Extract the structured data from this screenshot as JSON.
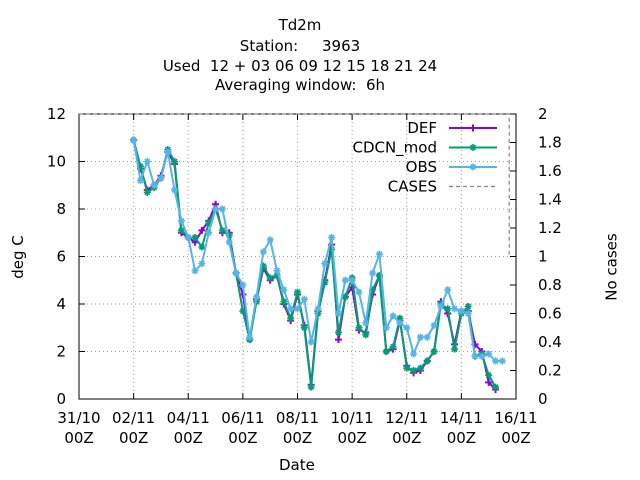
{
  "chart_data": {
    "type": "line",
    "title_lines": [
      "Td2m",
      "Station:     3963",
      "Used  12 + 03 06 09 12 15 18 21 24",
      "Averaging window:  6h"
    ],
    "xlabel": "Date",
    "ylabel": "deg C",
    "y2label": "No cases",
    "xlim": [
      "31/10 00Z",
      "16/11 00Z"
    ],
    "ylim": [
      0,
      12
    ],
    "y2lim": [
      0,
      2
    ],
    "x_unit_hours": 6,
    "x_ticks": [
      "31/10 00Z",
      "02/11 00Z",
      "04/11 00Z",
      "06/11 00Z",
      "08/11 00Z",
      "10/11 00Z",
      "12/11 00Z",
      "14/11 00Z",
      "16/11 00Z"
    ],
    "y_ticks": [
      0,
      2,
      4,
      6,
      8,
      10,
      12
    ],
    "y2_ticks": [
      0,
      0.2,
      0.4,
      0.6,
      0.8,
      1,
      1.2,
      1.4,
      1.6,
      1.8,
      2
    ],
    "grid": true,
    "legend_position": "top-right",
    "series": [
      {
        "name": "DEF",
        "color": "#9400d3",
        "marker": "plus",
        "x_start": "02/11 00Z",
        "values": [
          10.9,
          9.7,
          8.8,
          9.0,
          9.4,
          10.4,
          9.9,
          7.0,
          6.8,
          6.6,
          7.1,
          7.5,
          8.2,
          7.0,
          7.0,
          5.3,
          4.4,
          2.5,
          4.2,
          5.5,
          5.0,
          5.2,
          4.0,
          3.3,
          4.4,
          3.1,
          0.6,
          3.7,
          5.0,
          6.5,
          2.5,
          4.3,
          4.7,
          2.9,
          2.8,
          4.4,
          5.2,
          2.0,
          2.1,
          3.3,
          1.4,
          1.1,
          1.2,
          1.6,
          2.0,
          4.1,
          3.6,
          2.3,
          3.7,
          3.7,
          2.3,
          2.0,
          0.7,
          0.4
        ]
      },
      {
        "name": "CDCN_mod",
        "color": "#009e73",
        "marker": "star",
        "x_start": "02/11 00Z",
        "values": [
          10.9,
          9.8,
          8.7,
          8.9,
          9.3,
          10.5,
          10.0,
          7.1,
          6.8,
          6.8,
          6.4,
          7.4,
          8.0,
          7.1,
          6.9,
          5.3,
          3.7,
          2.5,
          4.1,
          5.6,
          5.1,
          5.2,
          4.1,
          3.4,
          4.5,
          3.0,
          0.5,
          3.6,
          4.9,
          6.3,
          2.8,
          4.3,
          5.1,
          3.0,
          2.7,
          4.6,
          5.2,
          2.0,
          2.2,
          3.4,
          1.3,
          1.2,
          1.3,
          1.6,
          2.0,
          4.0,
          3.8,
          2.1,
          3.6,
          3.9,
          1.8,
          1.9,
          1.0,
          0.5
        ]
      },
      {
        "name": "OBS",
        "color": "#56b4e9",
        "marker": "star",
        "x_start": "02/11 00Z",
        "values": [
          10.9,
          9.2,
          10.0,
          9.0,
          9.3,
          10.4,
          8.8,
          7.5,
          6.8,
          5.4,
          5.7,
          7.0,
          8.0,
          8.0,
          6.6,
          5.3,
          4.8,
          2.6,
          4.3,
          6.2,
          6.7,
          5.4,
          4.6,
          3.8,
          3.8,
          4.2,
          2.4,
          3.8,
          5.7,
          6.8,
          3.6,
          5.0,
          5.0,
          4.5,
          3.2,
          5.3,
          6.1,
          3.0,
          3.5,
          3.2,
          3.0,
          1.9,
          2.6,
          2.6,
          3.1,
          3.9,
          4.6,
          3.8,
          3.7,
          3.6,
          1.8,
          1.8,
          1.9,
          1.6,
          1.6
        ]
      },
      {
        "name": "CASES",
        "color": "#888888",
        "dashed": true,
        "axis": "y2",
        "x": [
          "31/10 00Z",
          "15/11 18Z",
          "15/11 18Z"
        ],
        "values": [
          2,
          2,
          1
        ]
      }
    ]
  }
}
